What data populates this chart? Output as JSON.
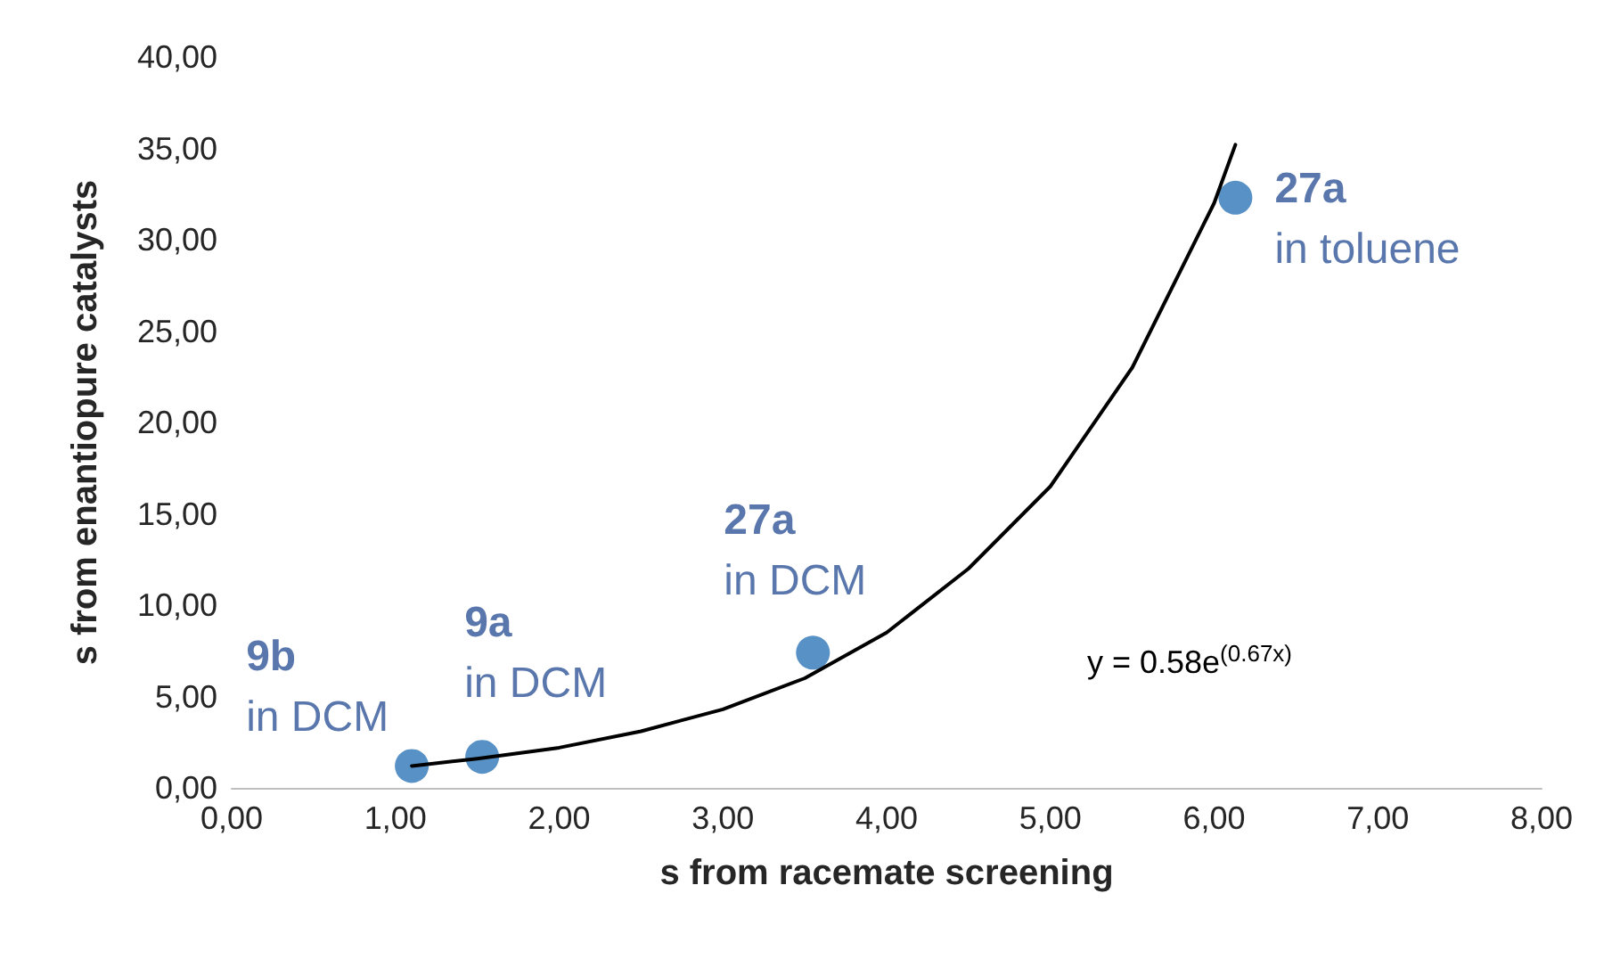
{
  "chart_data": {
    "type": "scatter",
    "xlabel": "s from racemate screening",
    "ylabel": "s from enantiopure catalysts",
    "series": [
      {
        "type": "scatter",
        "color": "#2e75b6",
        "marker": "circle",
        "x": [
          1.1,
          1.53,
          3.55,
          6.13
        ],
        "values": [
          1.2,
          1.7,
          7.4,
          32.3
        ]
      },
      {
        "type": "line",
        "color": "#000000",
        "marker": "none",
        "line_style": "solid",
        "x": [
          1.1,
          1.5,
          2.0,
          2.5,
          3.0,
          3.5,
          4.0,
          4.5,
          5.0,
          5.5,
          6.0,
          6.13
        ],
        "values": [
          1.2,
          1.6,
          2.2,
          3.1,
          4.3,
          6.0,
          8.5,
          12.0,
          16.5,
          23.0,
          32.0,
          35.2
        ]
      }
    ],
    "annotations": [
      {
        "text": "9b\nin DCM",
        "x": 1.1,
        "y": 1.2
      },
      {
        "text": "9a\nin DCM",
        "x": 1.53,
        "y": 1.7
      },
      {
        "text": "27a\nin DCM",
        "x": 3.55,
        "y": 7.4
      },
      {
        "text": "27a\nin toluene",
        "x": 6.13,
        "y": 32.3
      },
      "y = 0.58e$^{(0.67x)}$"
    ],
    "xlim": [
      0,
      8
    ],
    "ylim": [
      0,
      40
    ],
    "xticks": [
      {
        "value": 0,
        "label": "0,00"
      },
      {
        "value": 1,
        "label": "1,00"
      },
      {
        "value": 2,
        "label": "2,00"
      },
      {
        "value": 3,
        "label": "3,00"
      },
      {
        "value": 4,
        "label": "4,00"
      },
      {
        "value": 5,
        "label": "5,00"
      },
      {
        "value": 6,
        "label": "6,00"
      },
      {
        "value": 7,
        "label": "7,00"
      },
      {
        "value": 8,
        "label": "8,00"
      }
    ],
    "yticks": [
      {
        "value": 0,
        "label": "0,00"
      },
      {
        "value": 5,
        "label": "5,00"
      },
      {
        "value": 10,
        "label": "10,00"
      },
      {
        "value": 15,
        "label": "15,00"
      },
      {
        "value": 20,
        "label": "20,00"
      },
      {
        "value": 25,
        "label": "25,00"
      },
      {
        "value": 30,
        "label": "30,00"
      },
      {
        "value": 35,
        "label": "35,00"
      },
      {
        "value": 40,
        "label": "40,00"
      }
    ],
    "grid": false
  }
}
